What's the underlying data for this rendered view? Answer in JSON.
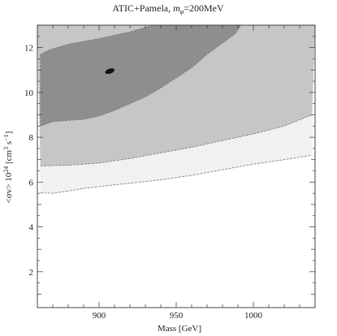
{
  "chart_data": {
    "type": "contour",
    "title": {
      "prefix": "ATIC+Pamela, ",
      "m": "m",
      "sub": "φ",
      "suffix": "=200MeV"
    },
    "xlabel": "Mass [GeV]",
    "ylabel": {
      "prefix": "<σv> 10",
      "exp1": "24",
      "middle": " [cm",
      "exp2": "3",
      "s": " s",
      "exp3": "−1",
      "suffix": "]"
    },
    "xlim": [
      860,
      1040
    ],
    "ylim": [
      0.4,
      13.0
    ],
    "x_ticks": [
      900,
      950,
      1000
    ],
    "y_ticks": [
      2,
      4,
      6,
      8,
      10,
      12
    ],
    "colors": {
      "outer_region": "#f1f1f1",
      "middle_region": "#c6c6c6",
      "inner_region": "#8e8e8e",
      "best_fit": "#111111",
      "contour_line": "#777777",
      "frame": "#333333"
    },
    "contours": [
      {
        "level": "outer",
        "lower_boundary": [
          {
            "x": 862,
            "y": 5.52
          },
          {
            "x": 870,
            "y": 5.5
          },
          {
            "x": 880,
            "y": 5.6
          },
          {
            "x": 890,
            "y": 5.72
          },
          {
            "x": 900,
            "y": 5.8
          },
          {
            "x": 920,
            "y": 5.95
          },
          {
            "x": 940,
            "y": 6.1
          },
          {
            "x": 960,
            "y": 6.3
          },
          {
            "x": 980,
            "y": 6.55
          },
          {
            "x": 1000,
            "y": 6.8
          },
          {
            "x": 1020,
            "y": 7.0
          },
          {
            "x": 1038,
            "y": 7.2
          }
        ]
      },
      {
        "level": "middle",
        "lower_boundary": [
          {
            "x": 862,
            "y": 6.72
          },
          {
            "x": 880,
            "y": 6.75
          },
          {
            "x": 900,
            "y": 6.85
          },
          {
            "x": 920,
            "y": 7.05
          },
          {
            "x": 940,
            "y": 7.3
          },
          {
            "x": 960,
            "y": 7.55
          },
          {
            "x": 980,
            "y": 7.85
          },
          {
            "x": 1000,
            "y": 8.15
          },
          {
            "x": 1020,
            "y": 8.5
          },
          {
            "x": 1038,
            "y": 9.0
          }
        ]
      },
      {
        "level": "inner",
        "boundary": [
          {
            "x": 862,
            "y": 8.5
          },
          {
            "x": 870,
            "y": 8.7
          },
          {
            "x": 880,
            "y": 8.75
          },
          {
            "x": 890,
            "y": 8.8
          },
          {
            "x": 900,
            "y": 8.95
          },
          {
            "x": 910,
            "y": 9.2
          },
          {
            "x": 920,
            "y": 9.5
          },
          {
            "x": 930,
            "y": 9.8
          },
          {
            "x": 940,
            "y": 10.2
          },
          {
            "x": 950,
            "y": 10.65
          },
          {
            "x": 960,
            "y": 11.1
          },
          {
            "x": 970,
            "y": 11.7
          },
          {
            "x": 980,
            "y": 12.2
          },
          {
            "x": 988,
            "y": 12.6
          },
          {
            "x": 992,
            "y": 13.0
          },
          {
            "x": 935,
            "y": 13.0
          },
          {
            "x": 920,
            "y": 12.7
          },
          {
            "x": 900,
            "y": 12.4
          },
          {
            "x": 880,
            "y": 12.15
          },
          {
            "x": 868,
            "y": 11.9
          },
          {
            "x": 862,
            "y": 11.7
          }
        ]
      }
    ],
    "best_fit_point": {
      "x": 907,
      "y": 10.95
    }
  }
}
